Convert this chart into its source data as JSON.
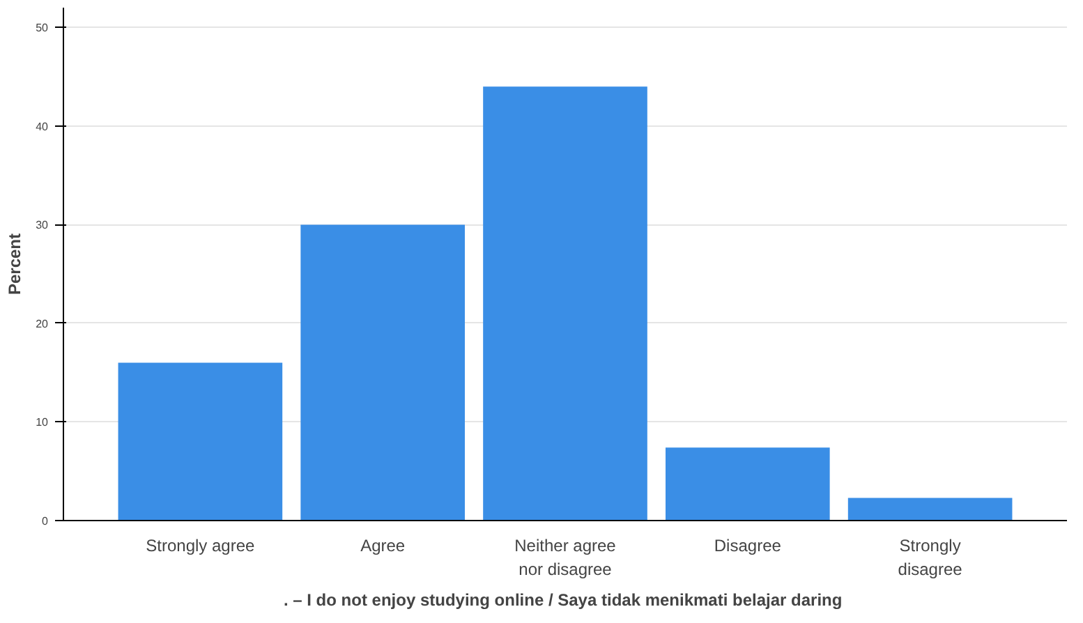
{
  "chart_data": {
    "type": "bar",
    "xlabel": ". – I do not enjoy studying online  / Saya tidak menikmati belajar daring",
    "ylabel": "Percent",
    "categories": [
      "Strongly agree",
      "Agree",
      "Neither agree\nnor disagree",
      "Disagree",
      "Strongly\ndisagree"
    ],
    "values": [
      16.0,
      30.0,
      44.0,
      7.4,
      2.3
    ],
    "color": "#3a8ee6",
    "ylim": [
      0,
      52
    ],
    "yticks": [
      0,
      10,
      20,
      30,
      40,
      50
    ],
    "grid": "y"
  }
}
